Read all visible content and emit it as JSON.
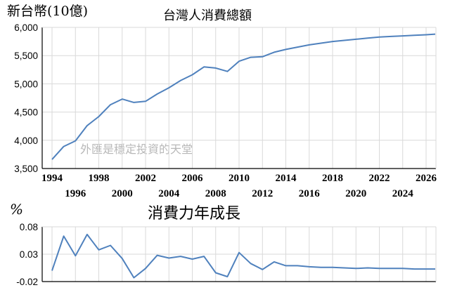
{
  "chart_data": [
    {
      "type": "line",
      "title": "台灣人消費總額",
      "ylabel": "新台幣(10億)",
      "xlabel": "",
      "ylim": [
        3500,
        6000
      ],
      "yticks": [
        3500,
        4000,
        4500,
        5000,
        5500,
        6000
      ],
      "ytick_labels": [
        "3,500",
        "4,000",
        "4,500",
        "5,000",
        "5,500",
        "6,000"
      ],
      "xlim": [
        1994,
        2026
      ],
      "xticks_upper": [
        1994,
        1998,
        2002,
        2006,
        2010,
        2014,
        2018,
        2022,
        2026
      ],
      "xticks_lower": [
        1996,
        2000,
        2004,
        2008,
        2012,
        2016,
        2020,
        2024
      ],
      "grid": true,
      "annotation": "外匯是穩定投資的天堂",
      "color": "#4f81bd",
      "series": [
        {
          "x": [
            1994,
            1995,
            1996,
            1997,
            1998,
            1999,
            2000,
            2001,
            2002,
            2003,
            2004,
            2005,
            2006,
            2007,
            2008,
            2009,
            2010,
            2011,
            2012,
            2013,
            2014,
            2015,
            2016,
            2017,
            2018,
            2019,
            2020,
            2021,
            2022,
            2023,
            2024,
            2025,
            2026,
            2027
          ],
          "values": [
            3660,
            3890,
            3990,
            4260,
            4420,
            4630,
            4730,
            4670,
            4690,
            4820,
            4930,
            5060,
            5160,
            5300,
            5280,
            5220,
            5400,
            5470,
            5480,
            5560,
            5610,
            5650,
            5690,
            5720,
            5750,
            5770,
            5790,
            5810,
            5830,
            5840,
            5850,
            5860,
            5870,
            5880
          ]
        }
      ]
    },
    {
      "type": "line",
      "title": "消費力年成長",
      "ylabel": "%",
      "xlabel": "",
      "ylim": [
        -0.02,
        0.08
      ],
      "yticks": [
        -0.02,
        0.03,
        0.08
      ],
      "ytick_labels": [
        "-0.02",
        "0.03",
        "0.08"
      ],
      "xlim": [
        1994,
        2026
      ],
      "grid": true,
      "color": "#4f81bd",
      "series": [
        {
          "x": [
            1994,
            1995,
            1996,
            1997,
            1998,
            1999,
            2000,
            2001,
            2002,
            2003,
            2004,
            2005,
            2006,
            2007,
            2008,
            2009,
            2010,
            2011,
            2012,
            2013,
            2014,
            2015,
            2016,
            2017,
            2018,
            2019,
            2020,
            2021,
            2022,
            2023,
            2024,
            2025,
            2026,
            2027
          ],
          "values": [
            0.0,
            0.063,
            0.027,
            0.066,
            0.038,
            0.046,
            0.022,
            -0.013,
            0.004,
            0.028,
            0.023,
            0.026,
            0.021,
            0.026,
            -0.004,
            -0.011,
            0.033,
            0.013,
            0.002,
            0.016,
            0.009,
            0.009,
            0.007,
            0.006,
            0.006,
            0.005,
            0.004,
            0.005,
            0.004,
            0.004,
            0.004,
            0.003,
            0.003,
            0.003
          ]
        }
      ]
    }
  ]
}
